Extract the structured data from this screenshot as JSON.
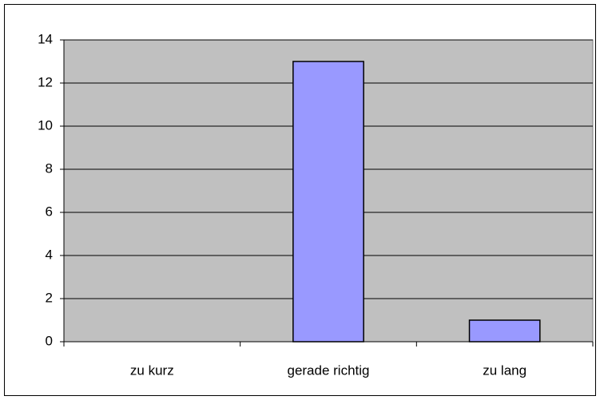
{
  "chart_data": {
    "type": "bar",
    "categories": [
      "zu kurz",
      "gerade richtig",
      "zu lang"
    ],
    "values": [
      0,
      13,
      1
    ],
    "color": "#9999ff",
    "ylim": [
      0,
      14
    ],
    "yticks": [
      0,
      2,
      4,
      6,
      8,
      10,
      12,
      14
    ],
    "grid": true
  }
}
